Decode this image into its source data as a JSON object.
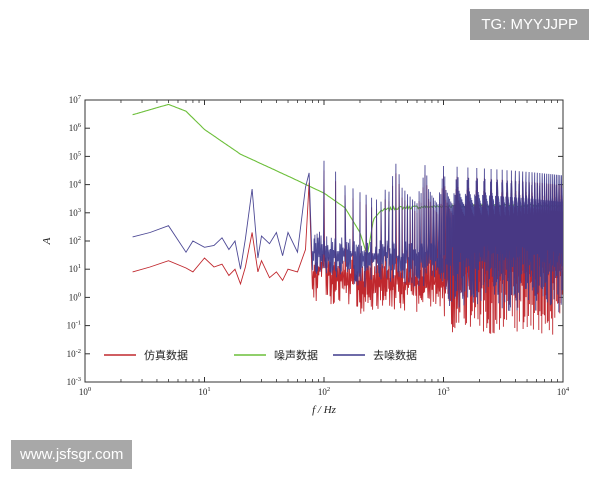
{
  "watermarks": {
    "top_right": "TG: MYYJJPP",
    "bottom_left": "www.jsfsgr.com"
  },
  "chart_data": {
    "type": "line",
    "title": "",
    "xlabel": "f / Hz",
    "ylabel": "A",
    "xscale": "log",
    "yscale": "log",
    "xlim": [
      1,
      10000
    ],
    "ylim": [
      0.001,
      10000000
    ],
    "x_tick_labels": [
      "10^0",
      "10^1",
      "10^2",
      "10^3",
      "10^4"
    ],
    "y_tick_labels": [
      "10^-3",
      "10^-2",
      "10^-1",
      "10^0",
      "10^1",
      "10^2",
      "10^3",
      "10^4",
      "10^5",
      "10^6",
      "10^7"
    ],
    "grid": false,
    "legend_position": "bottom-left",
    "series": [
      {
        "name": "仿真数据",
        "color": "#c0282e",
        "x": [
          2.5,
          3.5,
          5,
          7,
          8,
          10,
          12,
          14,
          16,
          18,
          20,
          22,
          25,
          28,
          30,
          35,
          40,
          45,
          50,
          60,
          70,
          80,
          100,
          120,
          150,
          200,
          300,
          500,
          1000,
          2000,
          5000,
          10000
        ],
        "y": [
          8,
          12,
          20,
          11,
          8,
          25,
          12,
          15,
          6,
          10,
          3,
          12,
          200,
          8,
          20,
          5,
          8,
          4,
          10,
          8,
          50,
          5,
          15,
          5,
          8,
          3,
          5,
          3,
          3,
          3,
          3,
          3
        ]
      },
      {
        "name": "噪声数据",
        "color": "#6cbf3a",
        "x": [
          2.5,
          5,
          7,
          10,
          20,
          50,
          100,
          150,
          200,
          230,
          260,
          300,
          400,
          600,
          1000,
          2000,
          5000,
          10000
        ],
        "y": [
          3000000,
          7000000,
          4000000,
          900000,
          120000,
          20000,
          5000,
          1500,
          200,
          30,
          600,
          1200,
          1500,
          1600,
          1700,
          1800,
          1800,
          1700
        ]
      },
      {
        "name": "去噪数据",
        "color": "#3e3a8c",
        "x": [
          2.5,
          3.5,
          5,
          7,
          8,
          10,
          12,
          14,
          16,
          18,
          20,
          22,
          25,
          28,
          30,
          35,
          40,
          45,
          50,
          60,
          70,
          80,
          100,
          120,
          150,
          200,
          300,
          500,
          1000,
          2000,
          5000,
          10000
        ],
        "y": [
          140,
          200,
          350,
          40,
          100,
          60,
          70,
          130,
          50,
          100,
          10,
          120,
          7000,
          25,
          150,
          80,
          200,
          30,
          200,
          40,
          8000,
          40,
          80,
          30,
          50,
          20,
          30,
          25,
          20,
          20,
          15,
          12
        ]
      }
    ],
    "harmonic_peaks": {
      "fundamental": 25,
      "series_colors": [
        "#c0282e",
        "#3e3a8c"
      ],
      "peak_values": [
        8000,
        7000,
        25000,
        70000,
        30000,
        10000,
        8000,
        6000,
        5000,
        4000,
        3500,
        3000
      ]
    }
  }
}
